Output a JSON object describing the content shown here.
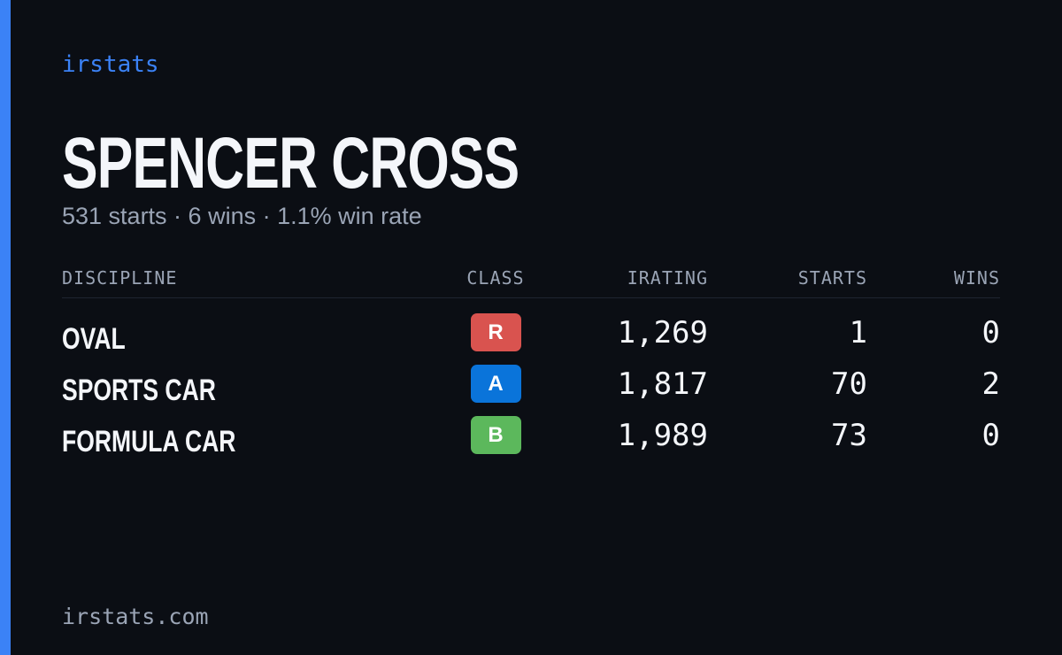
{
  "brand": "irstats",
  "title": "SPENCER CROSS",
  "subtitle": "531 starts · 6 wins · 1.1% win rate",
  "table": {
    "headers": [
      "DISCIPLINE",
      "CLASS",
      "IRATING",
      "STARTS",
      "WINS"
    ],
    "rows": [
      {
        "discipline": "OVAL",
        "class": "R",
        "class_color": "#d9534f",
        "irating": "1,269",
        "starts": "1",
        "wins": "0"
      },
      {
        "discipline": "SPORTS CAR",
        "class": "A",
        "class_color": "#0a74da",
        "irating": "1,817",
        "starts": "70",
        "wins": "2"
      },
      {
        "discipline": "FORMULA CAR",
        "class": "B",
        "class_color": "#5cb85c",
        "irating": "1,989",
        "starts": "73",
        "wins": "0"
      }
    ]
  },
  "footer": "irstats.com"
}
